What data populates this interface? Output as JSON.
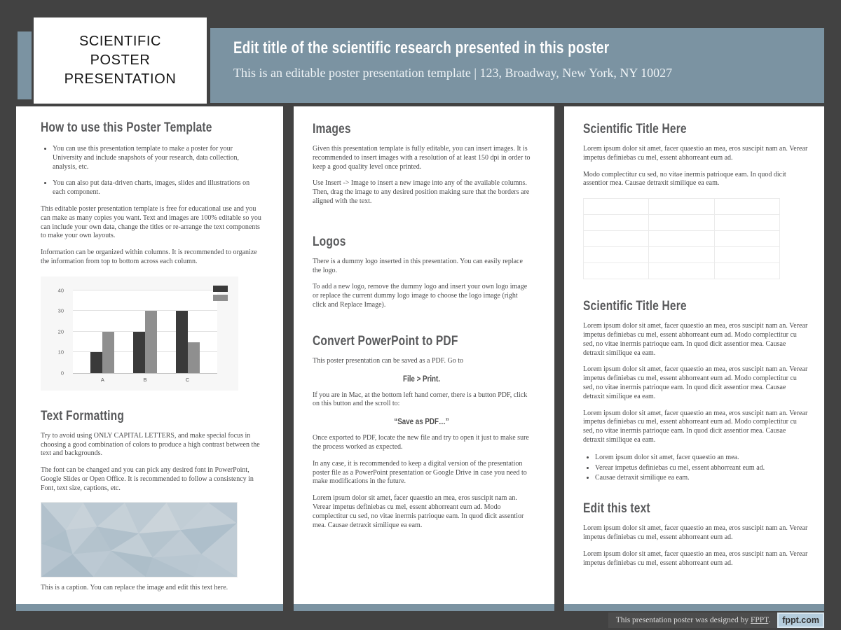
{
  "colors": {
    "frame_background": "#424242",
    "accent_blue_gray": "#7b93a2",
    "heading_gray": "#58595b",
    "badge_background": "#b5cddd"
  },
  "logo_box": {
    "lines": [
      "SCIENTIFIC",
      "POSTER",
      "PRESENTATION"
    ]
  },
  "header": {
    "title": "Edit title of the scientific research presented in this poster",
    "subtitle": "This is an editable poster presentation template | 123, Broadway, New York, NY 10027"
  },
  "columns": {
    "col1": {
      "heading1": "How to use this Poster Template",
      "bullets": [
        "You can use this presentation template to make a poster for your University and include snapshots of your research, data collection, analysis, etc.",
        "You can also put data-driven charts, images, slides and illustrations on each component."
      ],
      "para1": "This editable poster presentation template is free for educational use and you can make as many copies you want. Text and images are 100% editable so you can include your own data, change the titles or re-arrange the text components to make your own layouts.",
      "para2": "Information can be organized within columns. It is recommended to organize the information from top to bottom across each column.",
      "heading2": "Text Formatting",
      "tf_para1": "Try to avoid using ONLY CAPITAL LETTERS, and make special focus in choosing a good combination of colors to produce a high contrast between the text and backgrounds.",
      "tf_para2": "The font can be changed and you can pick any desired font in PowerPoint, Google Slides or Open Office. It is recommended to follow a consistency in Font, text size, captions, etc.",
      "caption": "This is a caption. You can replace the image and edit this text here."
    },
    "col2": {
      "heading1": "Images",
      "img_para1": "Given this presentation template is fully editable, you can insert images. It is recommended to insert images with a resolution of at least 150 dpi in order to keep a good quality level once printed.",
      "img_para2": "Use Insert -> Image to insert a new image into any of the available columns. Then, drag the image to any desired position making sure that the borders are aligned with the text.",
      "heading2": "Logos",
      "logo_para1": "There is a dummy logo inserted in this presentation. You can easily replace the logo.",
      "logo_para2": "To add a new logo, remove the dummy logo and insert your own logo image or replace the current dummy logo image to choose the logo image (right click and Replace Image).",
      "heading3": "Convert PowerPoint to PDF",
      "pdf_para1": "This poster presentation can be saved as a PDF. Go to",
      "pdf_center1": "File > Print.",
      "pdf_para2": "If you are in Mac, at the bottom left hand corner, there is a button PDF, click on this button and the scroll to:",
      "pdf_center2": "“Save as PDF…”",
      "pdf_para3": "Once exported to PDF, locate the new file and try to open it just to make sure the process worked as expected.",
      "pdf_para4": "In any case, it is recommended to keep a digital version of the presentation poster file as a PowerPoint presentation or Google Drive in case you need to make modifications in the future.",
      "pdf_para5": "Lorem ipsum dolor sit amet, facer quaestio an mea, eros suscipit nam an. Verear impetus definiebas cu mel, essent abhorreant eum ad. Modo complectitur cu sed, no vitae inermis patrioque eam. In quod dicit assentior mea. Causae detraxit similique ea eam."
    },
    "col3": {
      "heading1": "Scientific Title Here",
      "s1_para1": "Lorem ipsum dolor sit amet, facer quaestio an mea, eros suscipit nam an. Verear impetus definiebas cu mel, essent abhorreant eum ad.",
      "s1_para2": "Modo complectitur cu sed, no vitae inermis patrioque eam. In quod dicit assentior mea. Causae detraxit similique ea eam.",
      "table": {
        "rows": 5,
        "cols": 3
      },
      "heading2": "Scientific Title Here",
      "s2_paras": [
        "Lorem ipsum dolor sit amet, facer quaestio an mea, eros suscipit nam an. Verear impetus definiebas cu mel, essent abhorreant eum ad. Modo complectitur cu sed, no vitae inermis patrioque eam. In quod dicit assentior mea. Causae detraxit similique ea eam.",
        "Lorem ipsum dolor sit amet, facer quaestio an mea, eros suscipit nam an. Verear impetus definiebas cu mel, essent abhorreant eum ad. Modo complectitur cu sed, no vitae inermis patrioque eam. In quod dicit assentior mea. Causae detraxit similique ea eam.",
        "Lorem ipsum dolor sit amet, facer quaestio an mea, eros suscipit nam an. Verear impetus definiebas cu mel, essent abhorreant eum ad. Modo complectitur cu sed, no vitae inermis patrioque eam. In quod dicit assentior mea. Causae detraxit similique ea eam."
      ],
      "s2_bullets": [
        "Lorem ipsum dolor sit amet, facer quaestio an mea.",
        "Verear impetus definiebas cu mel, essent abhorreant eum ad.",
        "Causae detraxit similique ea eam."
      ],
      "heading3": "Edit this text",
      "s3_para1": "Lorem ipsum dolor sit amet, facer quaestio an mea, eros suscipit nam an. Verear impetus definiebas cu mel, essent abhorreant eum ad.",
      "s3_para2": "Lorem ipsum dolor sit amet, facer quaestio an mea, eros suscipit nam an. Verear impetus definiebas cu mel, essent abhorreant eum ad."
    }
  },
  "chart_data": {
    "type": "bar",
    "categories": [
      "A",
      "B",
      "C"
    ],
    "series": [
      {
        "name": "",
        "color": "#3a3a3a",
        "values": [
          10,
          20,
          30
        ]
      },
      {
        "name": "",
        "color": "#8f8f8f",
        "values": [
          20,
          30,
          15
        ]
      }
    ],
    "yticks": [
      0,
      10,
      20,
      30,
      40
    ],
    "ylim": [
      0,
      40
    ],
    "xlabel": "",
    "ylabel": "",
    "title": "",
    "grid": true,
    "legend_position": "top-right"
  },
  "footer": {
    "credit_prefix": "This presentation poster was designed by ",
    "credit_link": "FPPT",
    "credit_suffix": ".",
    "badge": "fppt.com"
  }
}
